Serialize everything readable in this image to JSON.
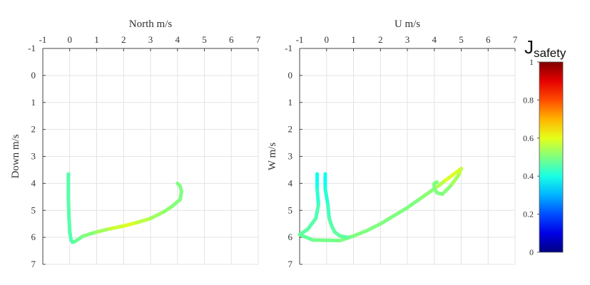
{
  "chart_data": [
    {
      "type": "line",
      "xlabel": "North m/s",
      "ylabel": "Down m/s",
      "xlim": [
        -1,
        7
      ],
      "ylim": [
        -1,
        7
      ],
      "x_ticks": [
        "-1",
        "0",
        "1",
        "2",
        "3",
        "4",
        "5",
        "6",
        "7"
      ],
      "y_ticks": [
        "-1",
        "0",
        "1",
        "2",
        "3",
        "4",
        "5",
        "6",
        "7"
      ],
      "y_inverted": true,
      "x_axis_position": "top",
      "grid": true,
      "colormap": "jet",
      "series": [
        {
          "x": [
            -0.05,
            -0.05,
            -0.03,
            0.0,
            0.05,
            0.1,
            0.2,
            0.5,
            1.0,
            1.5,
            2.0,
            2.5,
            3.0,
            3.5,
            3.8,
            4.1,
            4.15,
            4.1,
            4.0
          ],
          "y": [
            3.65,
            4.5,
            5.2,
            5.8,
            6.1,
            6.18,
            6.15,
            5.95,
            5.8,
            5.68,
            5.58,
            5.45,
            5.3,
            5.05,
            4.85,
            4.6,
            4.3,
            4.1,
            4.0
          ],
          "j": [
            0.46,
            0.46,
            0.46,
            0.46,
            0.45,
            0.45,
            0.47,
            0.49,
            0.52,
            0.55,
            0.6,
            0.58,
            0.54,
            0.52,
            0.51,
            0.5,
            0.5,
            0.5,
            0.5
          ]
        }
      ]
    },
    {
      "type": "line",
      "xlabel": "U m/s",
      "ylabel": "W m/s",
      "xlim": [
        -1,
        7
      ],
      "ylim": [
        -1,
        7
      ],
      "x_ticks": [
        "-1",
        "0",
        "1",
        "2",
        "3",
        "4",
        "5",
        "6",
        "7"
      ],
      "y_ticks": [
        "-1",
        "0",
        "1",
        "2",
        "3",
        "4",
        "5",
        "6",
        "7"
      ],
      "y_inverted": true,
      "x_axis_position": "top",
      "grid": true,
      "colormap": "jet",
      "series": [
        {
          "x": [
            -0.35,
            -0.35,
            -0.3,
            -0.4,
            -0.7,
            -1.0,
            -0.5,
            0.5,
            1.0,
            1.5,
            2.0,
            2.5,
            3.0,
            3.5,
            4.0,
            4.4,
            4.8,
            5.0,
            4.9,
            4.6,
            4.3,
            4.1,
            4.0,
            4.0,
            4.1
          ],
          "y": [
            3.65,
            4.2,
            4.8,
            5.3,
            5.7,
            5.9,
            6.1,
            6.12,
            5.95,
            5.75,
            5.5,
            5.2,
            4.9,
            4.55,
            4.2,
            3.9,
            3.6,
            3.45,
            3.7,
            4.1,
            4.4,
            4.35,
            4.2,
            4.0,
            3.95
          ],
          "j": [
            0.38,
            0.4,
            0.44,
            0.46,
            0.46,
            0.47,
            0.48,
            0.5,
            0.5,
            0.5,
            0.5,
            0.5,
            0.5,
            0.5,
            0.52,
            0.58,
            0.6,
            0.58,
            0.55,
            0.52,
            0.5,
            0.5,
            0.5,
            0.5,
            0.5
          ]
        },
        {
          "x": [
            -0.05,
            -0.05,
            0.05,
            0.1,
            0.2,
            0.3,
            0.5,
            0.8
          ],
          "y": [
            3.65,
            4.2,
            4.8,
            5.3,
            5.6,
            5.8,
            5.95,
            6.0
          ],
          "j": [
            0.38,
            0.4,
            0.43,
            0.45,
            0.46,
            0.47,
            0.47,
            0.47
          ]
        }
      ]
    }
  ],
  "colorbar": {
    "title": "J",
    "subscript": "safety",
    "ticks": [
      "0",
      "0.2",
      "0.4",
      "0.6",
      "0.8",
      "1"
    ],
    "range": [
      0,
      1
    ]
  }
}
